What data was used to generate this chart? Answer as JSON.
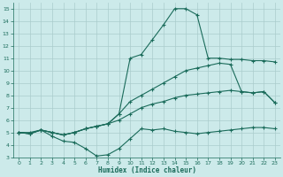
{
  "xlabel": "Humidex (Indice chaleur)",
  "bg_color": "#cceaea",
  "grid_color": "#aacccc",
  "line_color": "#1a6b5a",
  "xlim": [
    -0.5,
    23.5
  ],
  "ylim": [
    3,
    15.5
  ],
  "xticks": [
    0,
    1,
    2,
    3,
    4,
    5,
    6,
    7,
    8,
    9,
    10,
    11,
    12,
    13,
    14,
    15,
    16,
    17,
    18,
    19,
    20,
    21,
    22,
    23
  ],
  "yticks": [
    3,
    4,
    5,
    6,
    7,
    8,
    9,
    10,
    11,
    12,
    13,
    14,
    15
  ],
  "line1_x": [
    0,
    1,
    2,
    3,
    4,
    5,
    6,
    7,
    8,
    9,
    10,
    11,
    12,
    13,
    14,
    15,
    16,
    17,
    18,
    19,
    20,
    21,
    22,
    23
  ],
  "line1_y": [
    5,
    5,
    5.2,
    4.7,
    4.3,
    4.2,
    3.7,
    3.1,
    3.2,
    3.7,
    4.5,
    5.3,
    5.2,
    5.3,
    5.1,
    5.0,
    4.9,
    5.0,
    5.1,
    5.2,
    5.3,
    5.4,
    5.4,
    5.3
  ],
  "line2_x": [
    0,
    1,
    2,
    3,
    4,
    5,
    6,
    7,
    8,
    9,
    10,
    11,
    12,
    13,
    14,
    15,
    16,
    17,
    18,
    19,
    20,
    21,
    22,
    23
  ],
  "line2_y": [
    5,
    4.9,
    5.2,
    5.0,
    4.8,
    5.0,
    5.3,
    5.5,
    5.7,
    6.0,
    6.5,
    7.0,
    7.3,
    7.5,
    7.8,
    8.0,
    8.1,
    8.2,
    8.3,
    8.4,
    8.3,
    8.2,
    8.3,
    7.4
  ],
  "line3_x": [
    0,
    1,
    2,
    3,
    4,
    5,
    6,
    7,
    8,
    9,
    10,
    11,
    12,
    13,
    14,
    15,
    16,
    17,
    18,
    19,
    20,
    21,
    22,
    23
  ],
  "line3_y": [
    5,
    4.9,
    5.2,
    5.0,
    4.8,
    5.0,
    5.3,
    5.5,
    5.7,
    6.5,
    7.5,
    8.0,
    8.5,
    9.0,
    9.5,
    10.0,
    10.2,
    10.4,
    10.6,
    10.5,
    8.3,
    8.2,
    8.3,
    7.4
  ],
  "line4_x": [
    0,
    1,
    2,
    3,
    4,
    5,
    6,
    7,
    8,
    9,
    10,
    11,
    12,
    13,
    14,
    15,
    16,
    17,
    18,
    19,
    20,
    21,
    22,
    23
  ],
  "line4_y": [
    5,
    4.9,
    5.2,
    5.0,
    4.8,
    5.0,
    5.3,
    5.5,
    5.7,
    6.5,
    11.0,
    11.3,
    12.5,
    13.7,
    15.0,
    15.0,
    14.5,
    11.0,
    11.0,
    10.9,
    10.9,
    10.8,
    10.8,
    10.7
  ]
}
